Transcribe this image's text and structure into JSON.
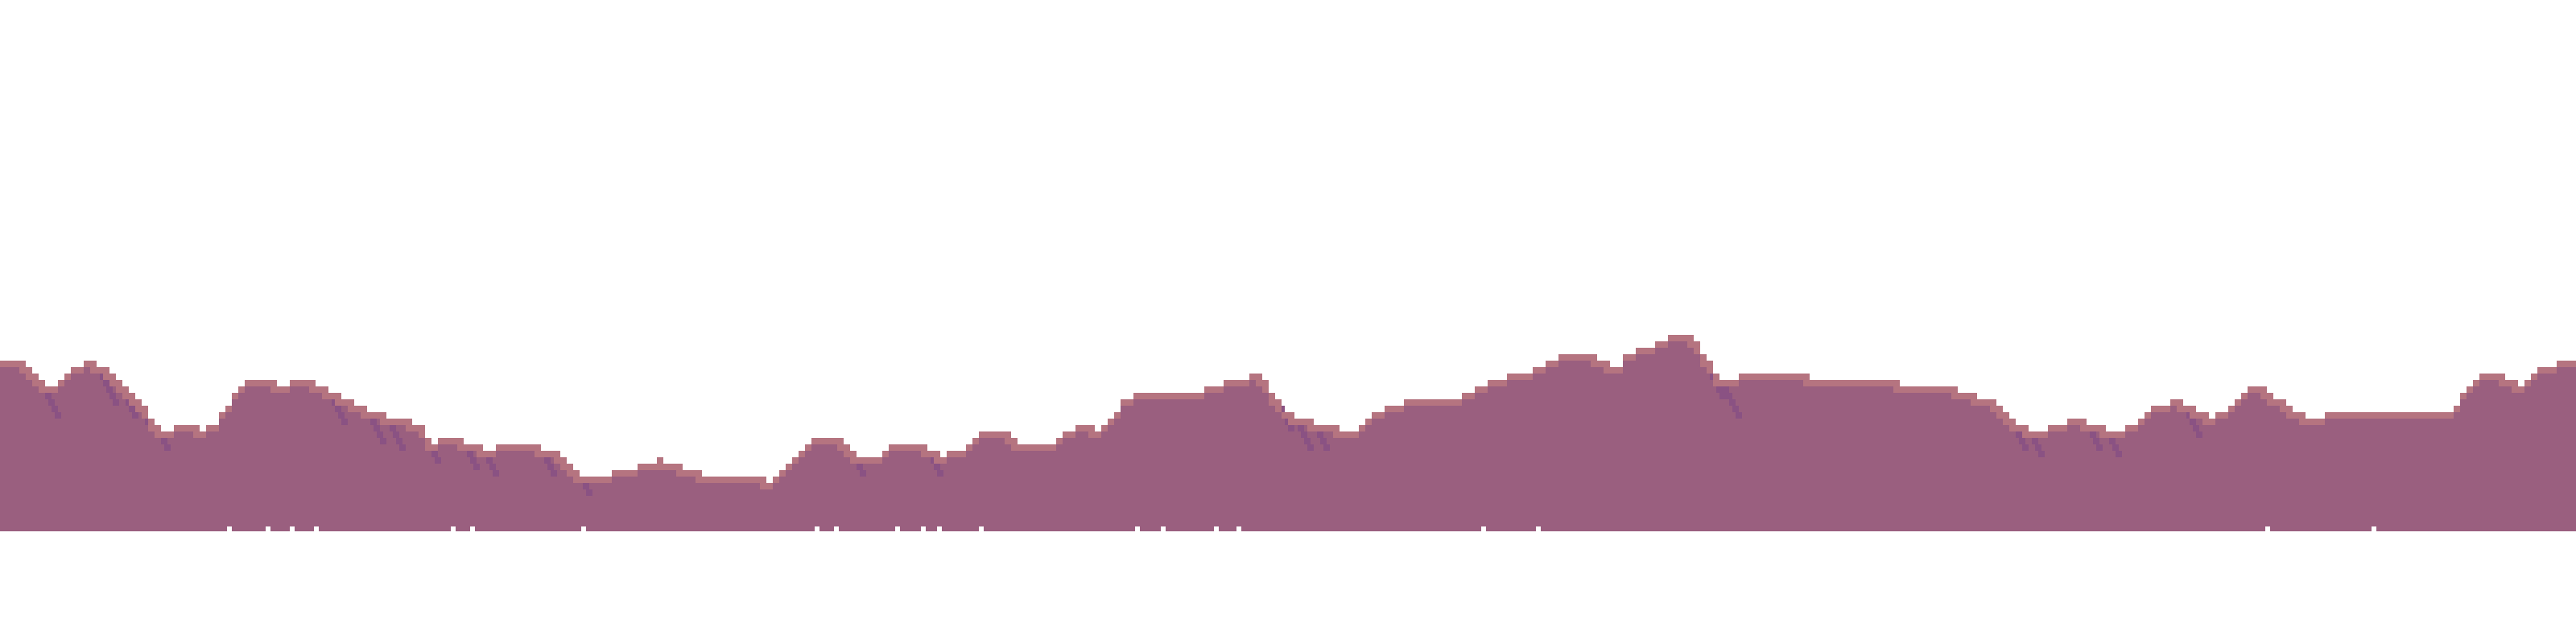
{
  "scene": {
    "type": "pixel-art-mountain-background-layer",
    "colors": {
      "background": "#ffffff",
      "mountain_body": "#9a5f7f",
      "ridge_highlight": "#b57480",
      "ridge_shadow": "#8a5283"
    }
  }
}
